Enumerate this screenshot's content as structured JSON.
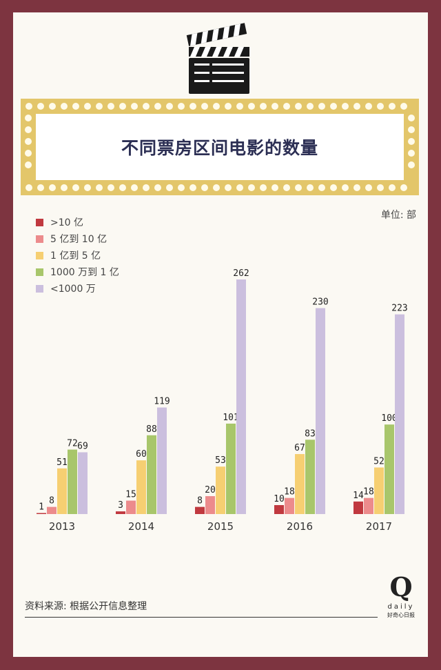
{
  "title": "不同票房区间电影的数量",
  "unit_label": "单位: 部",
  "source": "资料来源: 根据公开信息整理",
  "logo": {
    "mark": "Q",
    "name": "daily",
    "tagline": "好奇心日报"
  },
  "colors": {
    "background": "#7d3440",
    "card": "#fbf9f3",
    "marquee_frame": "#e3c66a",
    "title": "#2c2f54"
  },
  "chart_data": {
    "type": "bar",
    "title": "不同票房区间电影的数量",
    "xlabel": "",
    "ylabel": "",
    "categories": [
      "2013",
      "2014",
      "2015",
      "2016",
      "2017"
    ],
    "series": [
      {
        "name": ">10 亿",
        "color": "#c0393f",
        "values": [
          1,
          3,
          8,
          10,
          14
        ]
      },
      {
        "name": "5 亿到 10 亿",
        "color": "#ec8b8c",
        "values": [
          8,
          15,
          20,
          18,
          18
        ]
      },
      {
        "name": "1 亿到 5 亿",
        "color": "#f6cf72",
        "values": [
          51,
          60,
          53,
          67,
          52
        ]
      },
      {
        "name": "1000 万到 1 亿",
        "color": "#a8c66b",
        "values": [
          72,
          88,
          101,
          83,
          100
        ]
      },
      {
        "name": "<1000 万",
        "color": "#cbbfde",
        "values": [
          69,
          119,
          262,
          230,
          223
        ]
      }
    ],
    "ylim": [
      0,
      262
    ],
    "grid": false,
    "legend_position": "top-left"
  }
}
